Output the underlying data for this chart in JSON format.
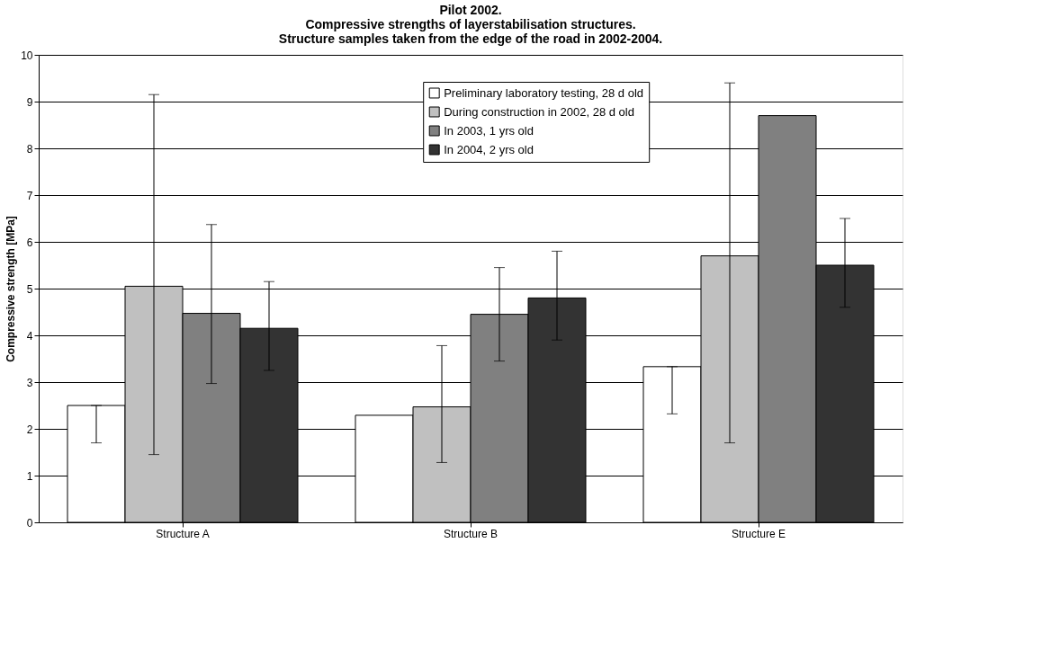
{
  "chart_data": {
    "type": "bar",
    "title": "Pilot 2002.\nCompressive strengths of layerstabilisation structures.\nStructure samples taken from the edge of the road in 2002-2004.",
    "ylabel": "Compressive strength [MPa]",
    "categories": [
      "Structure A",
      "Structure B",
      "Structure E"
    ],
    "series": [
      {
        "name": "Preliminary laboratory testing, 28 d old",
        "color": "#ffffff",
        "values": [
          2.5,
          2.29,
          3.33
        ],
        "errors": [
          [
            1.7,
            2.5
          ],
          null,
          [
            2.32,
            3.33
          ]
        ]
      },
      {
        "name": "During construction in 2002, 28 d old",
        "color": "#c0c0c0",
        "values": [
          5.05,
          2.47,
          5.7
        ],
        "errors": [
          [
            1.45,
            9.15
          ],
          [
            1.28,
            3.78
          ],
          [
            1.7,
            9.4
          ]
        ]
      },
      {
        "name": "In 2003, 1 yrs old",
        "color": "#808080",
        "values": [
          4.47,
          4.45,
          8.7
        ],
        "errors": [
          [
            2.97,
            6.37
          ],
          [
            3.45,
            5.45
          ],
          null
        ]
      },
      {
        "name": "In 2004, 2 yrs old",
        "color": "#333333",
        "values": [
          4.15,
          4.8,
          5.5
        ],
        "errors": [
          [
            3.25,
            5.15
          ],
          [
            3.9,
            5.8
          ],
          [
            4.6,
            6.5
          ]
        ]
      }
    ],
    "ylim": [
      0,
      10
    ],
    "yticks": [
      0,
      1,
      2,
      3,
      4,
      5,
      6,
      7,
      8,
      9,
      10
    ],
    "grid": "y",
    "legend": "top"
  }
}
